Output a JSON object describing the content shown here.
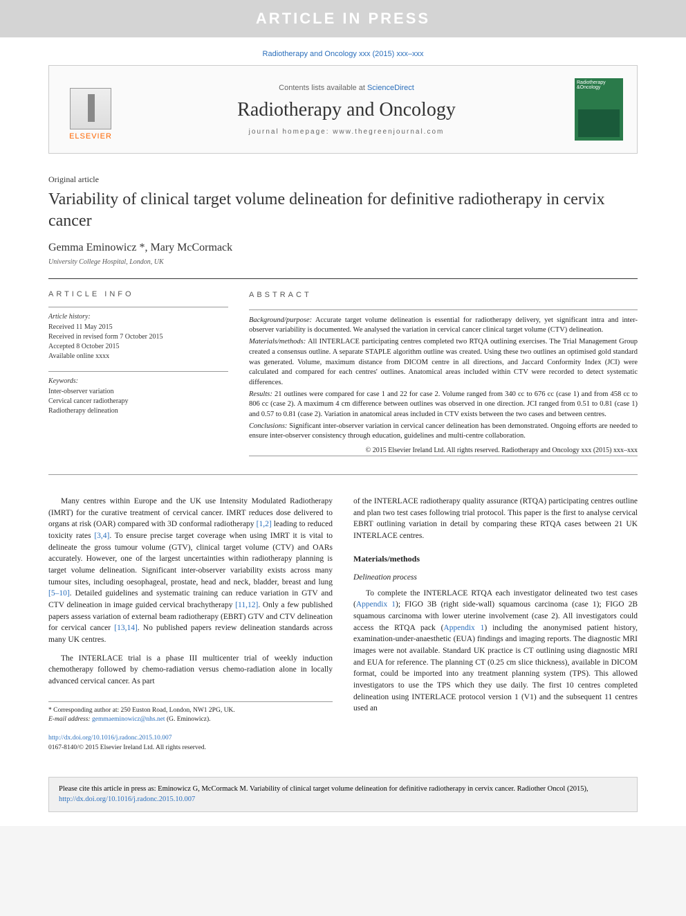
{
  "banner": "ARTICLE IN PRESS",
  "header": {
    "citation": "Radiotherapy and Oncology xxx (2015) xxx–xxx",
    "contents_prefix": "Contents lists available at ",
    "contents_link": "ScienceDirect",
    "journal_name": "Radiotherapy and Oncology",
    "homepage_label": "journal homepage: ",
    "homepage_url": "www.thegreenjournal.com",
    "publisher": "ELSEVIER",
    "cover_text": "Radiotherapy &Oncology"
  },
  "article": {
    "type": "Original article",
    "title": "Variability of clinical target volume delineation for definitive radiotherapy in cervix cancer",
    "authors": "Gemma Eminowicz *, Mary McCormack",
    "affiliation": "University College Hospital, London, UK"
  },
  "info": {
    "heading": "ARTICLE INFO",
    "history_label": "Article history:",
    "history": [
      "Received 11 May 2015",
      "Received in revised form 7 October 2015",
      "Accepted 8 October 2015",
      "Available online xxxx"
    ],
    "keywords_label": "Keywords:",
    "keywords": [
      "Inter-observer variation",
      "Cervical cancer radiotherapy",
      "Radiotherapy delineation"
    ]
  },
  "abstract": {
    "heading": "ABSTRACT",
    "sections": [
      {
        "label": "Background/purpose:",
        "text": "Accurate target volume delineation is essential for radiotherapy delivery, yet significant intra and inter-observer variability is documented. We analysed the variation in cervical cancer clinical target volume (CTV) delineation."
      },
      {
        "label": "Materials/methods:",
        "text": "All INTERLACE participating centres completed two RTQA outlining exercises. The Trial Management Group created a consensus outline. A separate STAPLE algorithm outline was created. Using these two outlines an optimised gold standard was generated. Volume, maximum distance from DICOM centre in all directions, and Jaccard Conformity Index (JCI) were calculated and compared for each centres' outlines. Anatomical areas included within CTV were recorded to detect systematic differences."
      },
      {
        "label": "Results:",
        "text": "21 outlines were compared for case 1 and 22 for case 2. Volume ranged from 340 cc to 676 cc (case 1) and from 458 cc to 806 cc (case 2). A maximum 4 cm difference between outlines was observed in one direction. JCI ranged from 0.51 to 0.81 (case 1) and 0.57 to 0.81 (case 2). Variation in anatomical areas included in CTV exists between the two cases and between centres."
      },
      {
        "label": "Conclusions:",
        "text": "Significant inter-observer variation in cervical cancer delineation has been demonstrated. Ongoing efforts are needed to ensure inter-observer consistency through education, guidelines and multi-centre collaboration."
      }
    ],
    "copyright": "© 2015 Elsevier Ireland Ltd. All rights reserved. Radiotherapy and Oncology xxx (2015) xxx–xxx"
  },
  "body": {
    "left": [
      {
        "text": "Many centres within Europe and the UK use Intensity Modulated Radiotherapy (IMRT) for the curative treatment of cervical cancer. IMRT reduces dose delivered to organs at risk (OAR) compared with 3D conformal radiotherapy ",
        "cite1": "[1,2]",
        "mid": " leading to reduced toxicity rates ",
        "cite2": "[3,4]",
        "rest": ". To ensure precise target coverage when using IMRT it is vital to delineate the gross tumour volume (GTV), clinical target volume (CTV) and OARs accurately. However, one of the largest uncertainties within radiotherapy planning is target volume delineation. Significant inter-observer variability exists across many tumour sites, including oesophageal, prostate, head and neck, bladder, breast and lung ",
        "cite3": "[5–10]",
        "rest2": ". Detailed guidelines and systematic training can reduce variation in GTV and CTV delineation in image guided cervical brachytherapy ",
        "cite4": "[11,12]",
        "rest3": ". Only a few published papers assess variation of external beam radiotherapy (EBRT) GTV and CTV delineation for cervical cancer ",
        "cite5": "[13,14]",
        "rest4": ". No published papers review delineation standards across many UK centres."
      },
      {
        "text": "The INTERLACE trial is a phase III multicenter trial of weekly induction chemotherapy followed by chemo-radiation versus chemo-radiation alone in locally advanced cervical cancer. As part"
      }
    ],
    "right_intro": "of the INTERLACE radiotherapy quality assurance (RTQA) participating centres outline and plan two test cases following trial protocol. This paper is the first to analyse cervical EBRT outlining variation in detail by comparing these RTQA cases between 21 UK INTERLACE centres.",
    "materials_head": "Materials/methods",
    "delineation_head": "Delineation process",
    "delineation_text": "To complete the INTERLACE RTQA each investigator delineated two test cases (",
    "appendix1": "Appendix 1",
    "delineation_mid": "); FIGO 3B (right side-wall) squamous carcinoma (case 1); FIGO 2B squamous carcinoma with lower uterine involvement (case 2). All investigators could access the RTQA pack (",
    "appendix2": "Appendix 1",
    "delineation_rest": ") including the anonymised patient history, examination-under-anaesthetic (EUA) findings and imaging reports. The diagnostic MRI images were not available. Standard UK practice is CT outlining using diagnostic MRI and EUA for reference. The planning CT (0.25 cm slice thickness), available in DICOM format, could be imported into any treatment planning system (TPS). This allowed investigators to use the TPS which they use daily. The first 10 centres completed delineation using INTERLACE protocol version 1 (V1) and the subsequent 11 centres used an"
  },
  "footnote": {
    "corresponding": "* Corresponding author at: 250 Euston Road, London, NW1 2PG, UK.",
    "email_label": "E-mail address: ",
    "email": "gemmaeminowicz@nhs.net",
    "email_who": " (G. Eminowicz)."
  },
  "doi": {
    "url": "http://dx.doi.org/10.1016/j.radonc.2015.10.007",
    "issn": "0167-8140/© 2015 Elsevier Ireland Ltd. All rights reserved."
  },
  "citebox": {
    "text": "Please cite this article in press as: Eminowicz G, McCormack M. Variability of clinical target volume delineation for definitive radiotherapy in cervix cancer. Radiother Oncol (2015), ",
    "link": "http://dx.doi.org/10.1016/j.radonc.2015.10.007"
  },
  "colors": {
    "link": "#2a6ebb",
    "banner_bg": "#d4d4d4",
    "cover_bg": "#2a7a4a",
    "elsevier": "#ff6600"
  }
}
